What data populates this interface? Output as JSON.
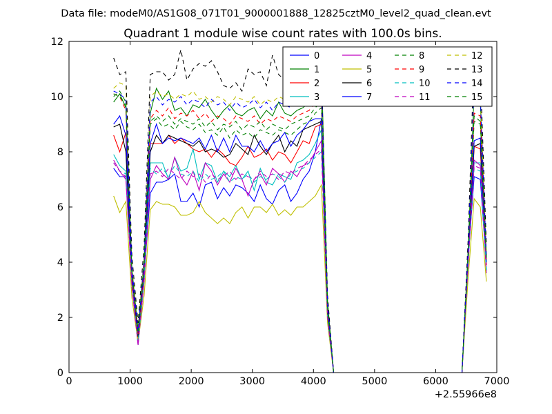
{
  "figure": {
    "suptitle": "Data file: modeM0/AS1G08_071T01_9000001888_12825cztM0_level2_quad_clean.evt"
  },
  "chart_data": {
    "type": "line",
    "title": "Quadrant 1 module wise count rates with 100.0s bins.",
    "xlabel": "",
    "ylabel": "",
    "x_offset_label": "+2.55966e8",
    "xlim": [
      0,
      7000
    ],
    "ylim": [
      0,
      12
    ],
    "xticks": [
      0,
      1000,
      2000,
      3000,
      4000,
      5000,
      6000,
      7000
    ],
    "yticks": [
      0,
      2,
      4,
      6,
      8,
      10,
      12
    ],
    "legend": {
      "placement": "top-right",
      "columns": 4
    },
    "x": [
      730,
      830,
      930,
      1030,
      1130,
      1230,
      1330,
      1430,
      1530,
      1630,
      1730,
      1830,
      1930,
      2030,
      2130,
      2230,
      2330,
      2430,
      2530,
      2630,
      2730,
      2830,
      2930,
      3030,
      3130,
      3230,
      3330,
      3430,
      3530,
      3630,
      3730,
      3830,
      3930,
      4030,
      4130,
      4230,
      4330,
      4430,
      4530,
      4630,
      4730,
      4830,
      4930,
      5030,
      5130,
      5230,
      5330,
      5430,
      5530,
      5630,
      5730,
      5830,
      5930,
      6030,
      6130,
      6230,
      6330,
      6430,
      6530,
      6630,
      6730,
      6830
    ],
    "series": [
      {
        "name": "0",
        "color": "#0000ff",
        "dash": "solid",
        "values": [
          7.4,
          7.1,
          7.1,
          3.3,
          1.6,
          3.5,
          6.5,
          6.9,
          6.9,
          7.0,
          7.2,
          6.2,
          6.2,
          6.5,
          6.0,
          6.8,
          6.9,
          6.3,
          6.7,
          6.4,
          6.8,
          6.7,
          6.5,
          6.2,
          6.8,
          6.3,
          6.1,
          6.6,
          6.8,
          6.2,
          6.5,
          7.0,
          7.3,
          8.0,
          9.2,
          2.0,
          0,
          0,
          0,
          0,
          0,
          0,
          0,
          0,
          0,
          0,
          0,
          0,
          0,
          0,
          0,
          0,
          0,
          0,
          0,
          0,
          0,
          0,
          4.1,
          7.1,
          7.0,
          3.9
        ]
      },
      {
        "name": "1",
        "color": "#008000",
        "dash": "solid",
        "values": [
          9.8,
          10.1,
          9.6,
          3.7,
          1.5,
          4.0,
          9.4,
          10.3,
          9.9,
          10.2,
          9.5,
          9.6,
          9.3,
          9.7,
          9.6,
          9.9,
          9.5,
          9.2,
          9.5,
          9.7,
          9.4,
          9.3,
          9.5,
          9.6,
          9.2,
          9.5,
          9.3,
          9.8,
          9.4,
          9.3,
          9.5,
          9.6,
          9.8,
          10.6,
          11.2,
          2.6,
          0,
          0,
          0,
          0,
          0,
          0,
          0,
          0,
          0,
          0,
          0,
          0,
          0,
          0,
          0,
          0,
          0,
          0,
          0,
          0,
          0,
          0,
          4.4,
          10.2,
          9.8,
          4.2
        ]
      },
      {
        "name": "2",
        "color": "#ff0000",
        "dash": "solid",
        "values": [
          8.6,
          8.0,
          8.7,
          3.3,
          1.1,
          3.6,
          8.3,
          8.3,
          8.3,
          8.6,
          8.3,
          8.5,
          8.3,
          8.1,
          8.0,
          8.1,
          7.8,
          8.1,
          7.9,
          7.6,
          7.5,
          7.8,
          8.2,
          7.8,
          7.9,
          8.1,
          7.7,
          8.0,
          7.9,
          7.6,
          8.0,
          8.4,
          8.3,
          8.9,
          9.0,
          2.3,
          0,
          0,
          0,
          0,
          0,
          0,
          0,
          0,
          0,
          0,
          0,
          0,
          0,
          0,
          0,
          0,
          0,
          0,
          0,
          0,
          0,
          0,
          4.0,
          8.2,
          8.1,
          3.9
        ]
      },
      {
        "name": "3",
        "color": "#00bfbf",
        "dash": "solid",
        "values": [
          7.9,
          7.5,
          7.3,
          3.2,
          1.0,
          3.4,
          7.6,
          7.6,
          7.6,
          7.0,
          7.8,
          7.3,
          7.4,
          8.1,
          7.0,
          7.6,
          7.5,
          6.9,
          7.3,
          7.1,
          7.5,
          7.0,
          7.3,
          6.6,
          7.4,
          6.9,
          6.8,
          7.2,
          7.1,
          7.0,
          7.6,
          7.7,
          7.9,
          8.3,
          8.8,
          2.1,
          0,
          0,
          0,
          0,
          0,
          0,
          0,
          0,
          0,
          0,
          0,
          0,
          0,
          0,
          0,
          0,
          0,
          0,
          0,
          0,
          0,
          0,
          4.0,
          7.6,
          7.6,
          3.7
        ]
      },
      {
        "name": "4",
        "color": "#bf00bf",
        "dash": "solid",
        "values": [
          7.7,
          7.3,
          7.0,
          3.2,
          1.0,
          3.3,
          7.0,
          7.5,
          7.2,
          7.0,
          7.8,
          7.1,
          6.8,
          7.3,
          6.6,
          7.6,
          7.3,
          6.8,
          7.2,
          6.9,
          7.4,
          7.0,
          6.4,
          7.0,
          7.2,
          6.8,
          7.4,
          7.2,
          6.9,
          7.3,
          7.1,
          7.5,
          7.6,
          8.0,
          8.4,
          2.0,
          0,
          0,
          0,
          0,
          0,
          0,
          0,
          0,
          0,
          0,
          0,
          0,
          0,
          0,
          0,
          0,
          0,
          0,
          0,
          0,
          0,
          0,
          3.9,
          7.7,
          7.5,
          3.6
        ]
      },
      {
        "name": "5",
        "color": "#bfbf00",
        "dash": "solid",
        "values": [
          6.4,
          5.8,
          6.2,
          2.7,
          1.1,
          2.8,
          5.9,
          6.2,
          6.1,
          6.1,
          6.0,
          5.7,
          5.7,
          5.8,
          6.2,
          5.8,
          5.6,
          5.4,
          5.6,
          5.4,
          5.8,
          6.0,
          5.6,
          6.0,
          6.0,
          5.8,
          6.1,
          5.7,
          5.9,
          5.7,
          6.0,
          6.0,
          6.2,
          6.4,
          6.8,
          1.8,
          0,
          0,
          0,
          0,
          0,
          0,
          0,
          0,
          0,
          0,
          0,
          0,
          0,
          0,
          0,
          0,
          0,
          0,
          0,
          0,
          0,
          0,
          3.4,
          6.3,
          6.0,
          3.3
        ]
      },
      {
        "name": "6",
        "color": "#000000",
        "dash": "solid",
        "values": [
          8.9,
          9.0,
          8.0,
          3.5,
          1.3,
          3.8,
          8.0,
          8.6,
          8.3,
          8.6,
          8.5,
          8.4,
          8.3,
          8.2,
          8.4,
          8.0,
          8.1,
          8.0,
          7.8,
          7.9,
          8.3,
          8.1,
          7.9,
          8.6,
          8.2,
          7.9,
          8.3,
          8.6,
          8.0,
          8.4,
          8.2,
          8.8,
          8.9,
          9.0,
          9.1,
          2.2,
          0,
          0,
          0,
          0,
          0,
          0,
          0,
          0,
          0,
          0,
          0,
          0,
          0,
          0,
          0,
          0,
          0,
          0,
          0,
          0,
          0,
          0,
          4.2,
          8.2,
          8.3,
          4.0
        ]
      },
      {
        "name": "7",
        "color": "#0000ff",
        "dash": "solid",
        "values": [
          9.0,
          9.3,
          8.6,
          3.6,
          1.4,
          3.9,
          8.3,
          9.0,
          8.3,
          8.5,
          8.4,
          8.5,
          8.4,
          8.3,
          8.5,
          8.1,
          8.6,
          8.0,
          8.5,
          8.0,
          8.6,
          8.2,
          8.2,
          8.0,
          8.4,
          8.0,
          8.3,
          8.4,
          8.7,
          8.2,
          8.6,
          8.8,
          9.1,
          9.2,
          9.2,
          2.3,
          0,
          0,
          0,
          0,
          0,
          0,
          0,
          0,
          0,
          0,
          0,
          0,
          0,
          0,
          0,
          0,
          0,
          0,
          0,
          0,
          0,
          0,
          4.2,
          8.4,
          8.5,
          4.0
        ]
      },
      {
        "name": "8",
        "color": "#008000",
        "dash": "dash",
        "values": [
          10.0,
          10.2,
          9.8,
          3.7,
          1.5,
          4.0,
          9.0,
          9.2,
          8.9,
          9.0,
          8.8,
          9.1,
          8.9,
          8.8,
          9.0,
          8.7,
          8.8,
          8.6,
          8.9,
          8.5,
          8.8,
          8.6,
          8.7,
          8.5,
          8.8,
          8.7,
          8.6,
          8.8,
          8.7,
          8.6,
          8.8,
          9.0,
          9.1,
          9.4,
          9.6,
          2.4,
          0,
          0,
          0,
          0,
          0,
          0,
          0,
          0,
          0,
          0,
          0,
          0,
          0,
          0,
          0,
          0,
          0,
          0,
          0,
          0,
          0,
          0,
          4.3,
          9.1,
          9.0,
          4.1
        ]
      },
      {
        "name": "9",
        "color": "#ff0000",
        "dash": "dash",
        "values": [
          10.1,
          10.0,
          9.5,
          3.6,
          1.4,
          3.9,
          9.2,
          9.5,
          9.3,
          9.6,
          9.2,
          9.4,
          9.3,
          9.5,
          9.2,
          9.4,
          9.1,
          9.3,
          9.2,
          9.0,
          9.3,
          9.2,
          9.1,
          9.3,
          9.0,
          9.2,
          9.1,
          9.3,
          9.2,
          9.1,
          9.3,
          9.4,
          9.5,
          9.8,
          10.0,
          2.5,
          0,
          0,
          0,
          0,
          0,
          0,
          0,
          0,
          0,
          0,
          0,
          0,
          0,
          0,
          0,
          0,
          0,
          0,
          0,
          0,
          0,
          0,
          4.3,
          9.4,
          9.3,
          4.1
        ]
      },
      {
        "name": "10",
        "color": "#00bfbf",
        "dash": "dash",
        "values": [
          7.6,
          7.3,
          7.2,
          3.2,
          1.1,
          3.4,
          7.4,
          7.2,
          7.4,
          7.1,
          7.5,
          7.2,
          7.1,
          7.3,
          6.9,
          7.2,
          7.0,
          7.1,
          7.3,
          6.9,
          7.1,
          7.0,
          7.2,
          6.9,
          7.1,
          7.0,
          7.2,
          7.1,
          6.9,
          7.2,
          7.3,
          7.4,
          7.6,
          7.8,
          8.0,
          2.0,
          0,
          0,
          0,
          0,
          0,
          0,
          0,
          0,
          0,
          0,
          0,
          0,
          0,
          0,
          0,
          0,
          0,
          0,
          0,
          0,
          0,
          0,
          3.9,
          7.4,
          7.3,
          3.7
        ]
      },
      {
        "name": "11",
        "color": "#bf00bf",
        "dash": "dash",
        "values": [
          7.6,
          7.3,
          7.1,
          3.1,
          1.0,
          3.3,
          7.2,
          7.3,
          7.1,
          7.4,
          7.2,
          7.0,
          7.3,
          7.1,
          7.2,
          6.9,
          7.2,
          7.0,
          7.1,
          7.3,
          7.0,
          7.2,
          7.1,
          7.0,
          7.3,
          7.1,
          7.2,
          7.0,
          7.3,
          7.2,
          7.4,
          7.5,
          7.7,
          7.9,
          8.1,
          2.0,
          0,
          0,
          0,
          0,
          0,
          0,
          0,
          0,
          0,
          0,
          0,
          0,
          0,
          0,
          0,
          0,
          0,
          0,
          0,
          0,
          0,
          0,
          3.9,
          7.5,
          7.4,
          3.7
        ]
      },
      {
        "name": "12",
        "color": "#bfbf00",
        "dash": "dash",
        "values": [
          10.3,
          10.5,
          10.4,
          3.8,
          1.6,
          4.2,
          10.0,
          10.2,
          10.0,
          10.1,
          9.9,
          10.1,
          10.0,
          10.2,
          9.9,
          10.0,
          9.8,
          10.0,
          9.9,
          9.7,
          10.0,
          9.9,
          9.8,
          10.0,
          9.7,
          9.9,
          9.8,
          10.0,
          9.9,
          9.8,
          10.0,
          10.1,
          10.2,
          10.4,
          10.6,
          2.6,
          0,
          0,
          0,
          0,
          0,
          0,
          0,
          0,
          0,
          0,
          0,
          0,
          0,
          0,
          0,
          0,
          0,
          0,
          0,
          0,
          0,
          0,
          4.5,
          10.3,
          10.1,
          4.3
        ]
      },
      {
        "name": "13",
        "color": "#000000",
        "dash": "dash",
        "values": [
          11.4,
          10.8,
          10.9,
          4.2,
          1.8,
          4.6,
          10.8,
          10.9,
          10.9,
          10.6,
          10.8,
          11.7,
          10.6,
          11.0,
          11.2,
          11.1,
          11.3,
          10.9,
          10.4,
          10.3,
          10.5,
          10.2,
          11.0,
          10.8,
          10.9,
          10.4,
          11.5,
          10.8,
          10.6,
          10.8,
          11.0,
          10.9,
          10.7,
          11.0,
          10.9,
          2.8,
          0,
          0,
          0,
          0,
          0,
          0,
          0,
          0,
          0,
          0,
          0,
          0,
          0,
          0,
          0,
          0,
          0,
          0,
          0,
          0,
          0,
          0,
          4.8,
          11.6,
          11.0,
          4.6
        ]
      },
      {
        "name": "14",
        "color": "#0000ff",
        "dash": "dash",
        "values": [
          10.2,
          10.1,
          9.9,
          3.8,
          1.5,
          4.1,
          9.8,
          10.0,
          9.7,
          9.9,
          9.8,
          10.0,
          9.7,
          9.9,
          9.8,
          9.6,
          9.9,
          9.7,
          9.8,
          9.5,
          9.8,
          9.6,
          9.7,
          9.9,
          9.6,
          9.8,
          9.5,
          9.8,
          9.7,
          9.6,
          9.8,
          9.9,
          10.0,
          10.3,
          10.5,
          2.5,
          0,
          0,
          0,
          0,
          0,
          0,
          0,
          0,
          0,
          0,
          0,
          0,
          0,
          0,
          0,
          0,
          0,
          0,
          0,
          0,
          0,
          0,
          4.4,
          10.4,
          10.0,
          4.2
        ]
      },
      {
        "name": "15",
        "color": "#008000",
        "dash": "dash",
        "values": [
          10.1,
          10.0,
          9.7,
          3.7,
          1.5,
          4.0,
          9.1,
          9.3,
          9.1,
          9.3,
          9.0,
          9.2,
          9.1,
          9.0,
          9.2,
          8.9,
          9.1,
          8.8,
          9.0,
          8.9,
          9.1,
          8.8,
          9.0,
          8.9,
          9.1,
          8.8,
          9.0,
          8.9,
          8.8,
          9.0,
          9.1,
          9.2,
          9.3,
          9.6,
          9.8,
          2.4,
          0,
          0,
          0,
          0,
          0,
          0,
          0,
          0,
          0,
          0,
          0,
          0,
          0,
          0,
          0,
          0,
          0,
          0,
          0,
          0,
          0,
          0,
          4.3,
          9.3,
          9.1,
          4.1
        ]
      }
    ]
  }
}
